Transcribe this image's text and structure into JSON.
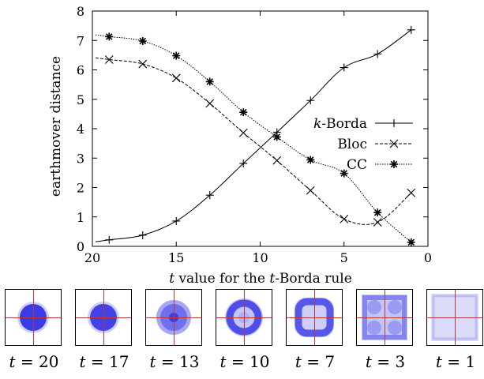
{
  "chart_data": {
    "type": "line",
    "xlabel_parts": [
      "t",
      " value for the ",
      "t",
      "-Borda rule"
    ],
    "ylabel": "earthmover distance",
    "xlim": [
      20,
      0
    ],
    "ylim": [
      0,
      8
    ],
    "x_ticks": [
      20,
      15,
      10,
      5,
      0
    ],
    "y_ticks": [
      0,
      1,
      2,
      3,
      4,
      5,
      6,
      7,
      8
    ],
    "grid": false,
    "legend_position": "middle-right",
    "series": [
      {
        "name_italic": "k",
        "name": "-Borda",
        "marker": "plus",
        "dash": "solid",
        "color": "#000000",
        "x": [
          19,
          17,
          15,
          13,
          11,
          9,
          7,
          5,
          3,
          1
        ],
        "y": [
          0.22,
          0.38,
          0.86,
          1.74,
          2.82,
          3.88,
          4.96,
          6.08,
          6.54,
          7.36
        ]
      },
      {
        "name": "Bloc",
        "marker": "cross",
        "dash": "dashed",
        "color": "#000000",
        "x": [
          19,
          17,
          15,
          13,
          11,
          9,
          7,
          5,
          3,
          1
        ],
        "y": [
          6.35,
          6.2,
          5.72,
          4.86,
          3.86,
          2.92,
          1.9,
          0.93,
          0.82,
          1.82
        ]
      },
      {
        "name": "CC",
        "marker": "star",
        "dash": "dotted",
        "color": "#000000",
        "x": [
          19,
          17,
          15,
          13,
          11,
          9,
          7,
          5,
          3,
          1
        ],
        "y": [
          7.13,
          6.98,
          6.48,
          5.6,
          4.56,
          3.72,
          2.94,
          2.48,
          1.15,
          0.14
        ]
      }
    ]
  },
  "thumbnails": [
    {
      "t": "20",
      "pattern": "disc-large"
    },
    {
      "t": "17",
      "pattern": "disc-medium"
    },
    {
      "t": "13",
      "pattern": "disc-hollow-center"
    },
    {
      "t": "10",
      "pattern": "ring"
    },
    {
      "t": "7",
      "pattern": "rounded-square-ring"
    },
    {
      "t": "3",
      "pattern": "square-grid"
    },
    {
      "t": "1",
      "pattern": "uniform-square"
    }
  ],
  "colors": {
    "thumb_fill": "#3a3ae6",
    "thumb_axis": "#b43a3a"
  }
}
